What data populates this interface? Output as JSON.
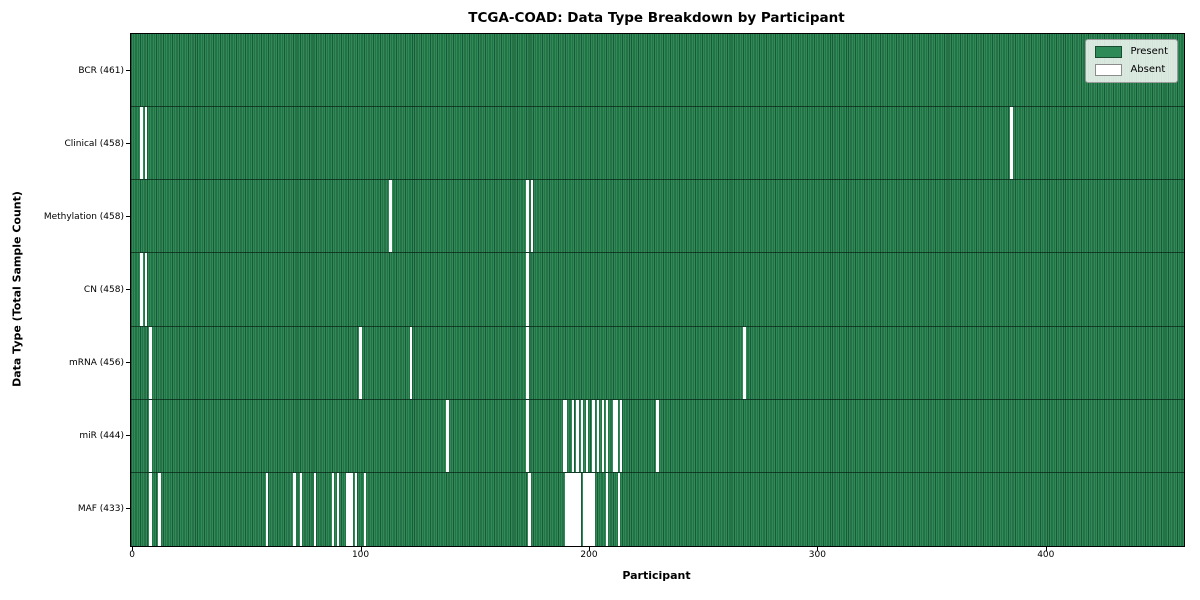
{
  "chart_data": {
    "type": "heatmap",
    "title": "TCGA-COAD: Data Type Breakdown by Participant",
    "xlabel": "Participant",
    "ylabel": "Data Type (Total Sample Count)",
    "n_participants": 461,
    "x_range": [
      -0.5,
      460.5
    ],
    "x_ticks": [
      0,
      100,
      200,
      300,
      400
    ],
    "grid": false,
    "legend_position": "upper right",
    "colors": {
      "present": "#2e8b57",
      "absent": "#ffffff",
      "bar_edge": "#0a2819",
      "plot_border": "#000000",
      "background": "#ffffff"
    },
    "legend": [
      {
        "name": "present",
        "label": "Present",
        "color": "#2e8b57"
      },
      {
        "name": "absent",
        "label": "Absent",
        "color": "#ffffff"
      }
    ],
    "rows": [
      {
        "label": "BCR (461)",
        "data_type": "BCR",
        "present_count": 461,
        "absent_participants": []
      },
      {
        "label": "Clinical (458)",
        "data_type": "Clinical",
        "present_count": 458,
        "absent_participants": [
          4,
          6,
          385
        ]
      },
      {
        "label": "Methylation (458)",
        "data_type": "Methylation",
        "present_count": 458,
        "absent_participants": [
          113,
          173,
          175
        ]
      },
      {
        "label": "CN (458)",
        "data_type": "CN",
        "present_count": 458,
        "absent_participants": [
          4,
          6,
          173
        ]
      },
      {
        "label": "mRNA (456)",
        "data_type": "mRNA",
        "present_count": 456,
        "absent_participants": [
          8,
          100,
          122,
          173,
          268
        ]
      },
      {
        "label": "miR (444)",
        "data_type": "miR",
        "present_count": 444,
        "absent_participants": [
          8,
          138,
          173,
          189,
          190,
          193,
          195,
          197,
          199,
          202,
          204,
          206,
          208,
          211,
          212,
          214,
          230
        ]
      },
      {
        "label": "MAF (433)",
        "data_type": "MAF",
        "present_count": 433,
        "absent_participants": [
          8,
          12,
          59,
          71,
          74,
          80,
          88,
          90,
          94,
          95,
          96,
          98,
          102,
          174,
          190,
          191,
          192,
          193,
          194,
          195,
          196,
          198,
          199,
          200,
          201,
          202,
          208,
          213
        ]
      }
    ]
  }
}
